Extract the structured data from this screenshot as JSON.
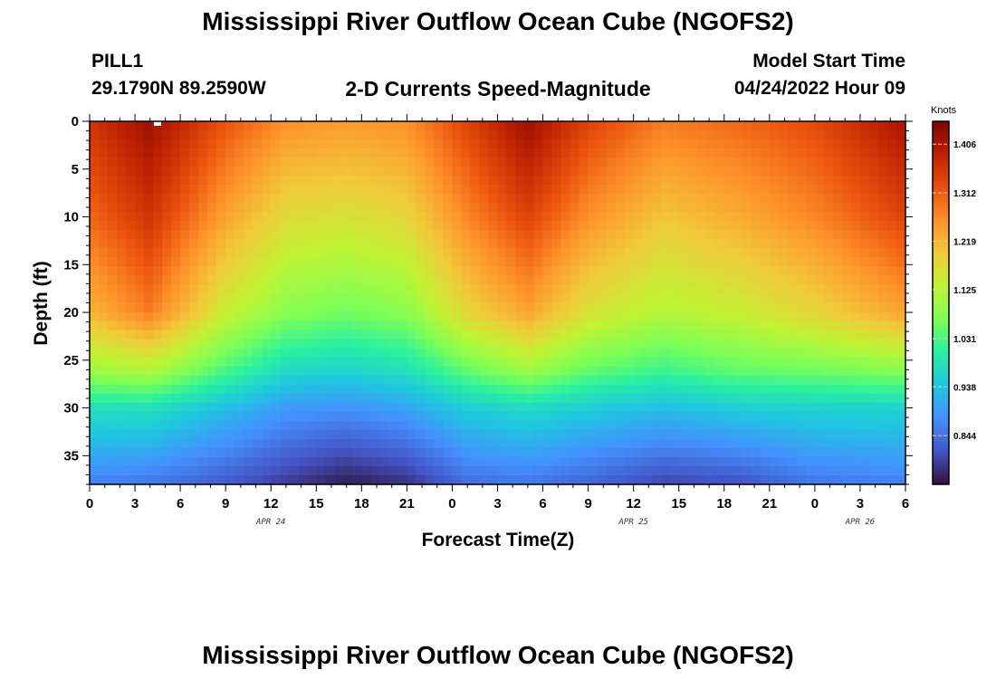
{
  "title": "Mississippi River Outflow Ocean Cube (NGOFS2)",
  "title_repeat": "Mississippi River Outflow Ocean Cube (NGOFS2)",
  "station": {
    "name": "PILL1",
    "coords": "29.1790N  89.2590W"
  },
  "subtitle": "2-D Currents Speed-Magnitude",
  "model_start": {
    "label": "Model Start Time",
    "value": "04/24/2022 Hour 09"
  },
  "chart_data": {
    "type": "heatmap",
    "title": "2-D Currents Speed-Magnitude",
    "xlabel": "Forecast Time(Z)",
    "ylabel": "Depth (ft)",
    "x_hours_range": [
      0,
      54
    ],
    "x_tick_labels": [
      "0",
      "3",
      "6",
      "9",
      "12",
      "15",
      "18",
      "21",
      "0",
      "3",
      "6",
      "9",
      "12",
      "15",
      "18",
      "21",
      "0",
      "3",
      "6"
    ],
    "date_labels": [
      {
        "text": "APR 24",
        "hour": 12
      },
      {
        "text": "APR 25",
        "hour": 36
      },
      {
        "text": "APR 26",
        "hour": 51
      }
    ],
    "y_range_ft": [
      0,
      38
    ],
    "y_ticks": [
      0,
      5,
      10,
      15,
      20,
      25,
      30,
      35
    ],
    "colorbar": {
      "label": "Knots",
      "range": [
        0.75,
        1.45
      ],
      "ticks": [
        "1.406",
        "1.312",
        "1.219",
        "1.125",
        "1.031",
        "0.938",
        "0.844"
      ],
      "tick_values": [
        1.406,
        1.312,
        1.219,
        1.125,
        1.031,
        0.938,
        0.844
      ],
      "colormap": [
        "#30123b",
        "#4454c4",
        "#4490fe",
        "#1fc8de",
        "#29efa2",
        "#7dff56",
        "#c1f334",
        "#f1ca3a",
        "#fe922a",
        "#ea4f0d",
        "#be2102",
        "#7a0403"
      ]
    },
    "speed_profiles_knots": [
      {
        "hour": 0,
        "depths_ft": [
          0,
          10,
          20,
          26,
          30,
          38
        ],
        "speeds": [
          1.36,
          1.3,
          1.22,
          1.1,
          0.98,
          0.86
        ]
      },
      {
        "hour": 4,
        "depths_ft": [
          0,
          10,
          20,
          26,
          30,
          38
        ],
        "speeds": [
          1.42,
          1.36,
          1.28,
          1.12,
          0.98,
          0.85
        ]
      },
      {
        "hour": 9,
        "depths_ft": [
          0,
          10,
          20,
          26,
          30,
          38
        ],
        "speeds": [
          1.32,
          1.24,
          1.14,
          1.03,
          0.93,
          0.82
        ]
      },
      {
        "hour": 13,
        "depths_ft": [
          0,
          10,
          20,
          26,
          30,
          38
        ],
        "speeds": [
          1.26,
          1.17,
          1.08,
          0.97,
          0.89,
          0.79
        ]
      },
      {
        "hour": 17,
        "depths_ft": [
          0,
          10,
          20,
          26,
          30,
          38
        ],
        "speeds": [
          1.25,
          1.16,
          1.06,
          0.96,
          0.88,
          0.76
        ]
      },
      {
        "hour": 21,
        "depths_ft": [
          0,
          10,
          20,
          26,
          30,
          38
        ],
        "speeds": [
          1.26,
          1.18,
          1.08,
          0.98,
          0.9,
          0.78
        ]
      },
      {
        "hour": 25,
        "depths_ft": [
          0,
          10,
          20,
          26,
          30,
          38
        ],
        "speeds": [
          1.34,
          1.27,
          1.18,
          1.05,
          0.95,
          0.84
        ]
      },
      {
        "hour": 29,
        "depths_ft": [
          0,
          10,
          20,
          26,
          30,
          38
        ],
        "speeds": [
          1.42,
          1.34,
          1.24,
          1.1,
          0.97,
          0.85
        ]
      },
      {
        "hour": 33,
        "depths_ft": [
          0,
          10,
          20,
          26,
          30,
          38
        ],
        "speeds": [
          1.34,
          1.26,
          1.16,
          1.05,
          0.95,
          0.83
        ]
      },
      {
        "hour": 38,
        "depths_ft": [
          0,
          10,
          20,
          26,
          30,
          38
        ],
        "speeds": [
          1.28,
          1.2,
          1.12,
          1.02,
          0.93,
          0.8
        ]
      },
      {
        "hour": 43,
        "depths_ft": [
          0,
          10,
          20,
          26,
          30,
          38
        ],
        "speeds": [
          1.3,
          1.23,
          1.14,
          1.05,
          0.95,
          0.81
        ]
      },
      {
        "hour": 48,
        "depths_ft": [
          0,
          10,
          20,
          26,
          30,
          38
        ],
        "speeds": [
          1.33,
          1.27,
          1.18,
          1.06,
          0.96,
          0.85
        ]
      },
      {
        "hour": 54,
        "depths_ft": [
          0,
          10,
          20,
          26,
          30,
          38
        ],
        "speeds": [
          1.41,
          1.34,
          1.24,
          1.08,
          0.96,
          0.86
        ]
      }
    ]
  }
}
